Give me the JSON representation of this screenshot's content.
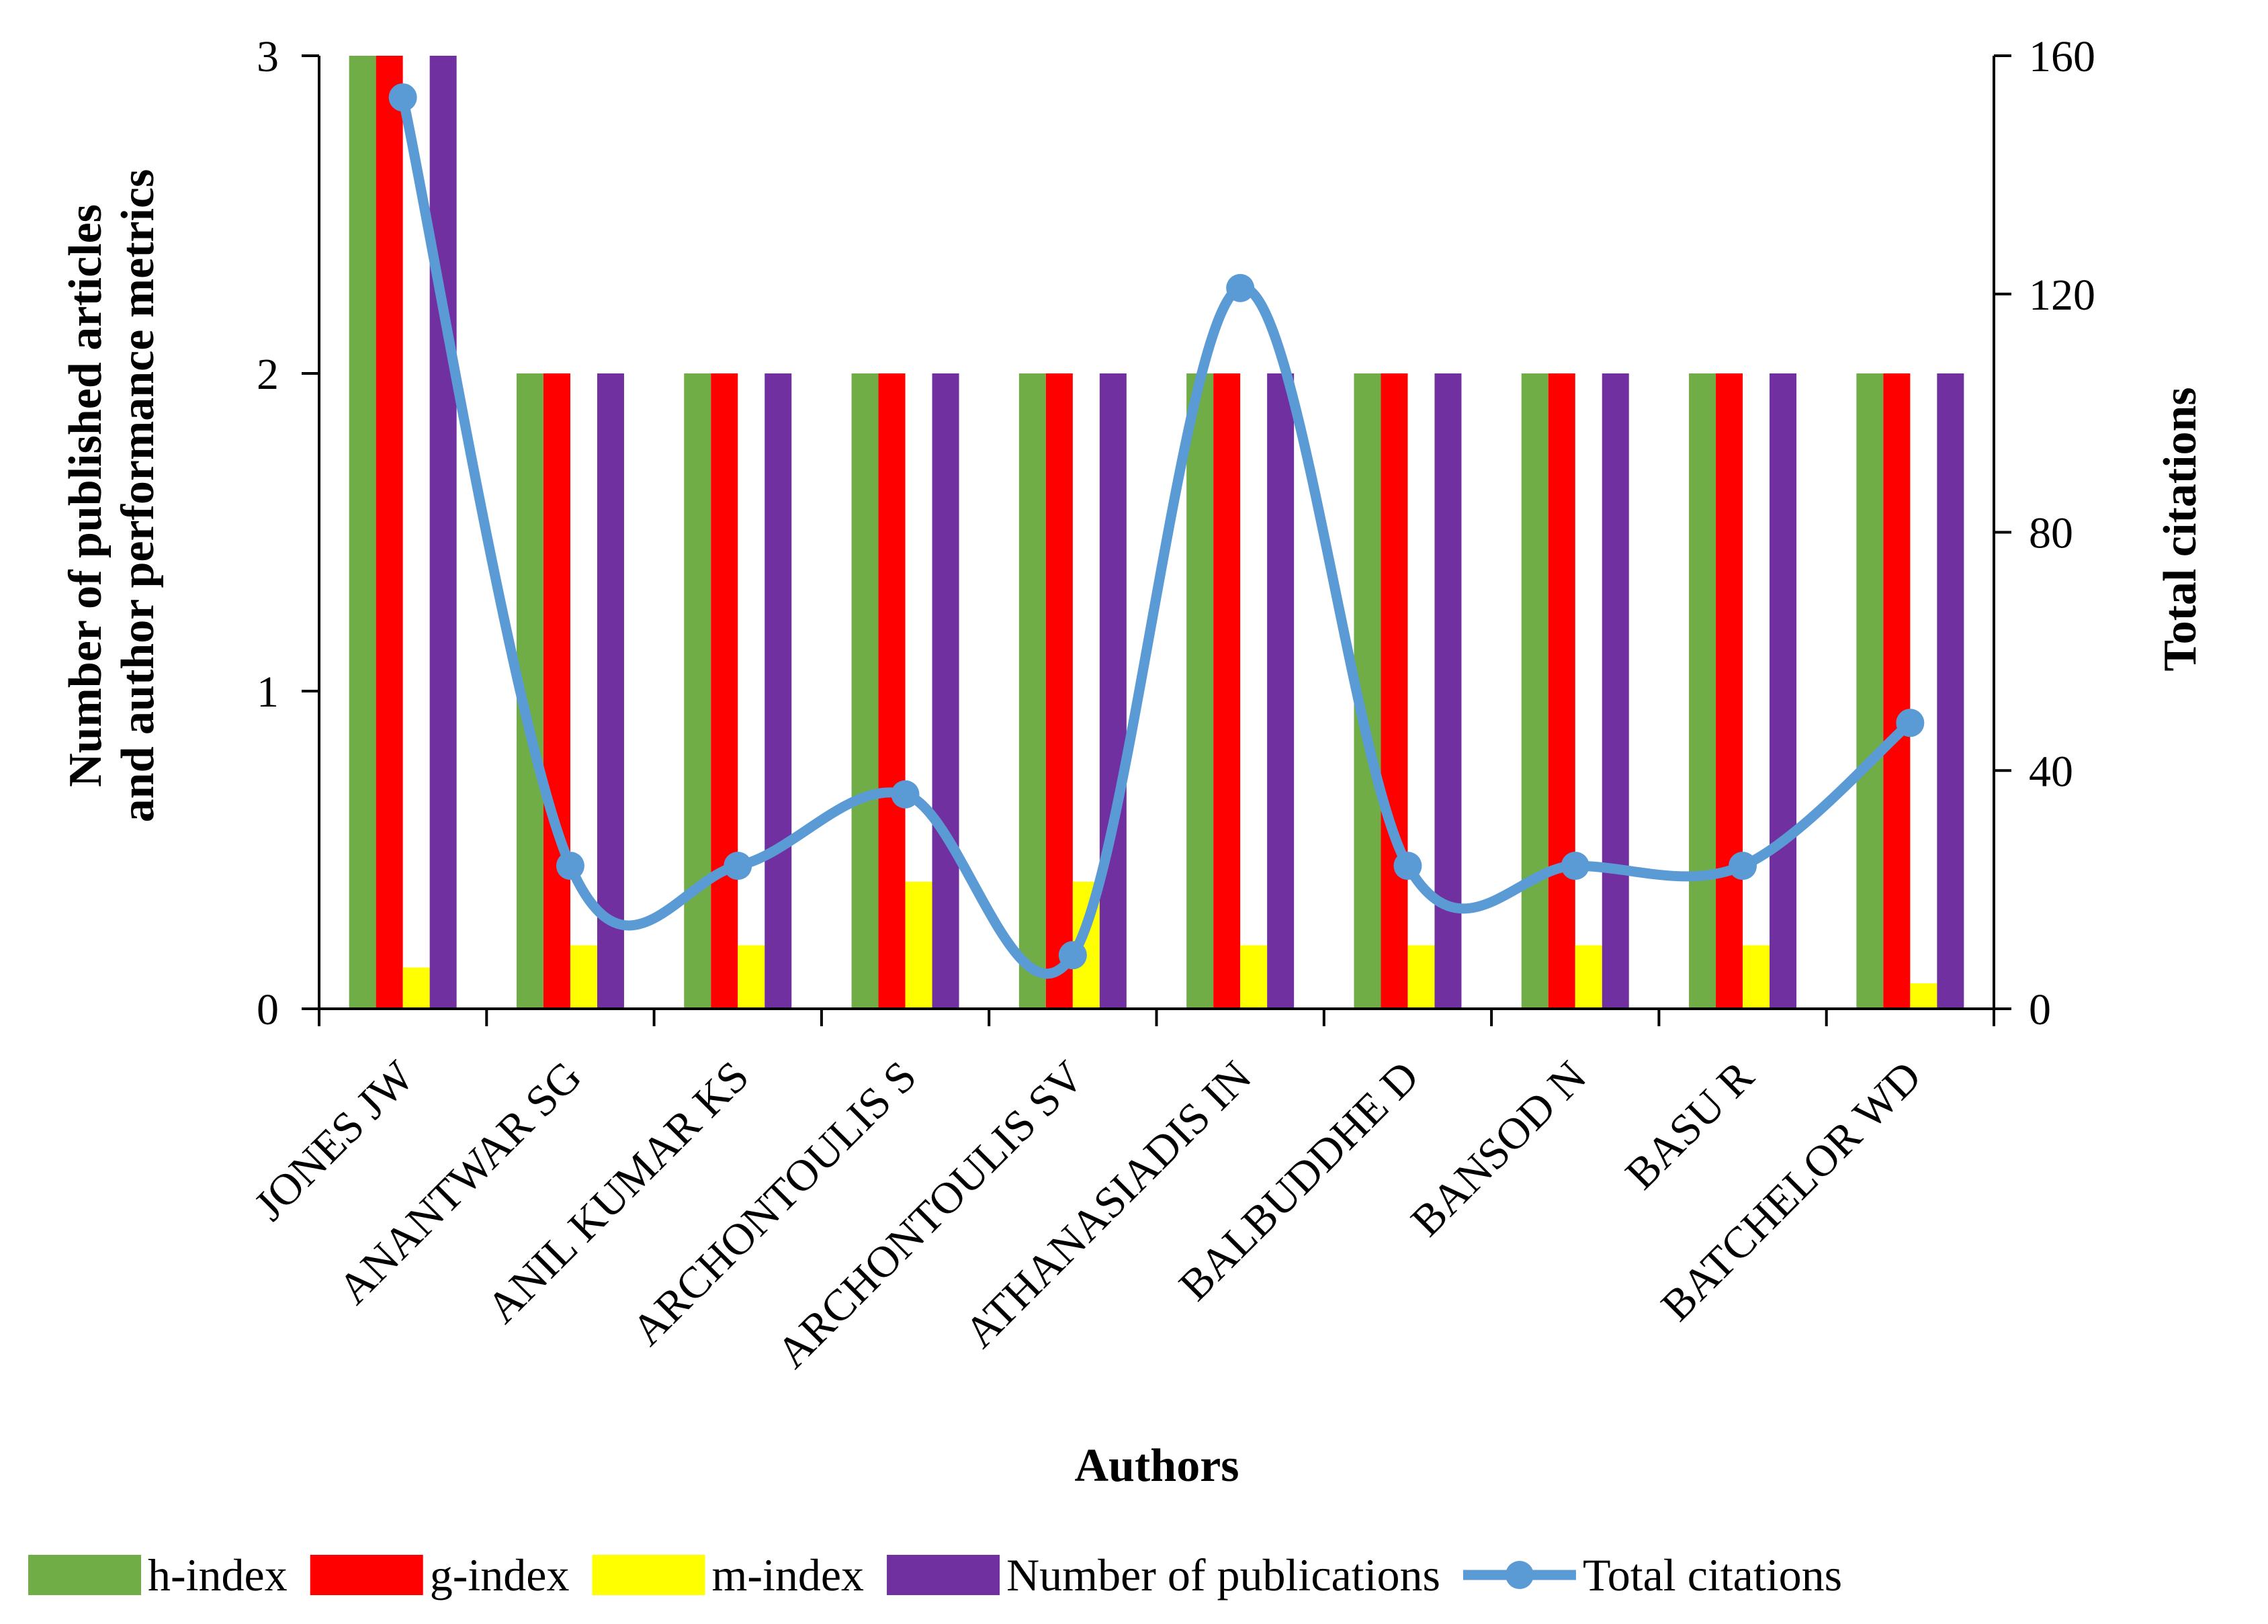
{
  "chart_data": {
    "type": "bar",
    "xlabel": "Authors",
    "ylabel_lines": [
      "Number of published articles",
      "and author performance metrics"
    ],
    "y2label": "Total citations",
    "ylim": [
      0,
      3
    ],
    "y2lim": [
      0,
      160
    ],
    "yticks": [
      0,
      1,
      2,
      3
    ],
    "y2ticks": [
      0,
      40,
      80,
      120,
      160
    ],
    "categories": [
      "JONES JW",
      "ANANTWAR SG",
      "ANIL KUMAR KS",
      "ARCHONTOULIS S",
      "ARCHONTOULIS SV",
      "ATHANASIADIS IN",
      "BALBUDDHE D",
      "BANSOD N",
      "BASU R",
      "BATCHELOR WD"
    ],
    "series": [
      {
        "name": "h-index",
        "color": "#70AD47",
        "axis": "left",
        "values": [
          3,
          2,
          2,
          2,
          2,
          2,
          2,
          2,
          2,
          2
        ]
      },
      {
        "name": "g-index",
        "color": "#FF0000",
        "axis": "left",
        "values": [
          3,
          2,
          2,
          2,
          2,
          2,
          2,
          2,
          2,
          2
        ]
      },
      {
        "name": "m-index",
        "color": "#FFFF00",
        "axis": "left",
        "values": [
          0.13,
          0.2,
          0.2,
          0.4,
          0.4,
          0.2,
          0.2,
          0.2,
          0.2,
          0.08
        ]
      },
      {
        "name": "Number of publications",
        "color": "#7030A0",
        "axis": "left",
        "values": [
          3,
          2,
          2,
          2,
          2,
          2,
          2,
          2,
          2,
          2
        ]
      }
    ],
    "line_series": {
      "name": "Total citations",
      "color": "#5B9BD5",
      "axis": "right",
      "values": [
        153,
        24,
        24,
        36,
        9,
        121,
        24,
        24,
        24,
        48
      ]
    },
    "legend_position": "bottom"
  }
}
